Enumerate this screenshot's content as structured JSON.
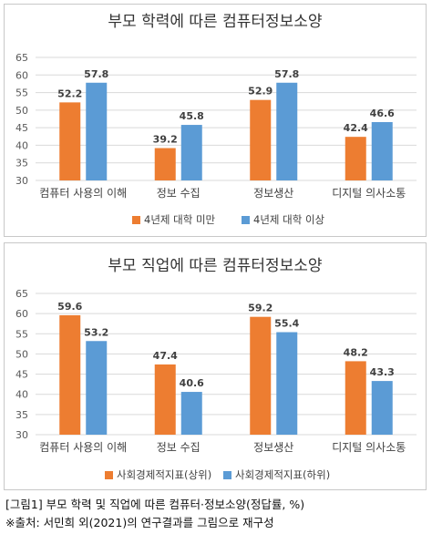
{
  "colors": {
    "orange": "#ED7D31",
    "blue": "#5B9BD5",
    "grid": "#d9d9d9",
    "axis_text": "#595959"
  },
  "chart_data": [
    {
      "type": "bar",
      "title": "부모 학력에 따른 컴퓨터정보소양",
      "categories": [
        "컴퓨터 사용의 이해",
        "정보 수집",
        "정보생산",
        "디지털 의사소통"
      ],
      "series": [
        {
          "name": "4년제 대학 미만",
          "color": "#ED7D31",
          "values": [
            52.2,
            39.2,
            52.9,
            42.4
          ]
        },
        {
          "name": "4년제 대학 이상",
          "color": "#5B9BD5",
          "values": [
            57.8,
            45.8,
            57.8,
            46.6
          ]
        }
      ],
      "ylim": [
        30,
        65
      ],
      "yticks": [
        30,
        35,
        40,
        45,
        50,
        55,
        60,
        65
      ],
      "grid": true,
      "legend": "bottom"
    },
    {
      "type": "bar",
      "title": "부모 직업에 따른 컴퓨터정보소양",
      "categories": [
        "컴퓨터 사용의 이해",
        "정보 수집",
        "정보생산",
        "디지털 의사소통"
      ],
      "series": [
        {
          "name": "사회경제적지표(상위)",
          "color": "#ED7D31",
          "values": [
            59.6,
            47.4,
            59.2,
            48.2
          ]
        },
        {
          "name": "사회경제적지표(하위)",
          "color": "#5B9BD5",
          "values": [
            53.2,
            40.6,
            55.4,
            43.3
          ]
        }
      ],
      "ylim": [
        30,
        65
      ],
      "yticks": [
        30,
        35,
        40,
        45,
        50,
        55,
        60,
        65
      ],
      "grid": true,
      "legend": "bottom"
    }
  ],
  "caption": {
    "line1": "[그림1] 부모 학력 및 직업에 따른 컴퓨터·정보소양(정답률, %)",
    "line2": "※출처: 서민희 외(2021)의 연구결과를 그림으로 재구성"
  }
}
